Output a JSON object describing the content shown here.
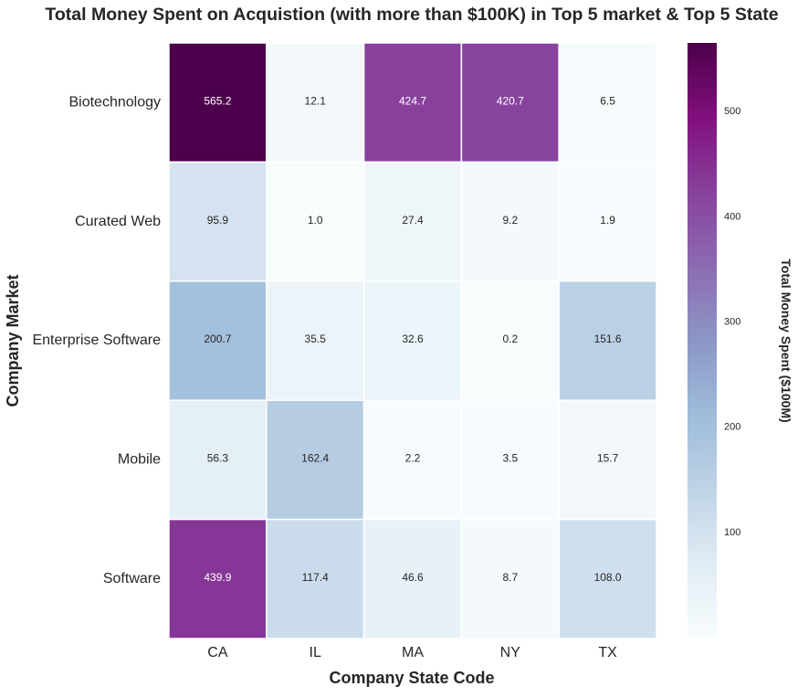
{
  "chart_data": {
    "type": "heatmap",
    "title": "Total Money Spent on Acquistion (with more than $100K) in Top 5 market & Top 5 State",
    "xlabel": "Company State Code",
    "ylabel": "Company Market",
    "x_categories": [
      "CA",
      "IL",
      "MA",
      "NY",
      "TX"
    ],
    "y_categories": [
      "Biotechnology",
      "Curated Web",
      "Enterprise Software",
      "Mobile",
      "Software"
    ],
    "values": [
      [
        565.2,
        12.1,
        424.7,
        420.7,
        6.5
      ],
      [
        95.9,
        1.0,
        27.4,
        9.2,
        1.9
      ],
      [
        200.7,
        35.5,
        32.6,
        0.2,
        151.6
      ],
      [
        56.3,
        162.4,
        2.2,
        3.5,
        15.7
      ],
      [
        439.9,
        117.4,
        46.6,
        8.7,
        108.0
      ]
    ],
    "value_format": "0.1f",
    "colorbar": {
      "label": "Total Money Spent ($100M)",
      "ticks": [
        100,
        200,
        300,
        400,
        500
      ],
      "range": [
        0.2,
        565.2
      ],
      "colormap": "BuPu",
      "stops": [
        "#f7fcfd",
        "#e0ecf4",
        "#bfd3e6",
        "#9ebcda",
        "#8c96c6",
        "#8c6bb1",
        "#88419d",
        "#810f7c",
        "#4d004b"
      ]
    },
    "grid": false
  }
}
